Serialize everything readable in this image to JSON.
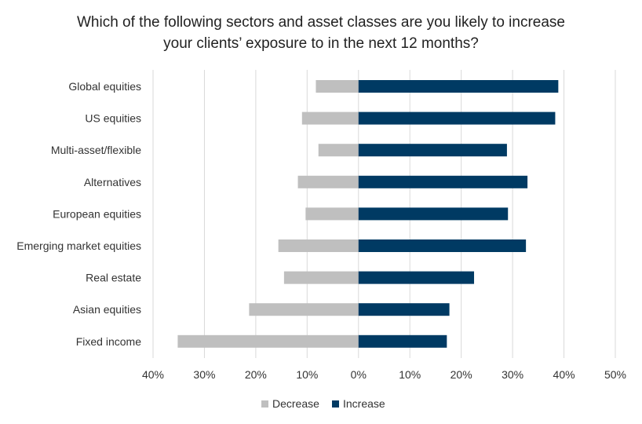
{
  "chart_data": {
    "type": "bar",
    "orientation": "horizontal",
    "stacked": "diverging",
    "title": [
      "Which of the following sectors and asset classes are you likely to increase",
      "your clients’ exposure to in the next 12 months?"
    ],
    "categories": [
      "Global equities",
      "US equities",
      "Multi-asset/flexible",
      "Alternatives",
      "European equities",
      "Emerging market equities",
      "Real estate",
      "Asian equities",
      "Fixed income"
    ],
    "series": [
      {
        "name": "Decrease",
        "color": "#bfbfbf",
        "values": [
          -8.3,
          -11,
          -7.8,
          -11.8,
          -10.3,
          -15.6,
          -14.5,
          -21.3,
          -35.2
        ]
      },
      {
        "name": "Increase",
        "color": "#003a63",
        "values": [
          38.9,
          38.3,
          28.9,
          32.9,
          29.1,
          32.6,
          22.5,
          17.7,
          17.2
        ]
      }
    ],
    "xlim": [
      -40,
      50
    ],
    "xticks": [
      -40,
      -30,
      -20,
      -10,
      0,
      10,
      20,
      30,
      40,
      50
    ],
    "xtick_labels": [
      "40%",
      "30%",
      "20%",
      "10%",
      "0%",
      "10%",
      "20%",
      "30%",
      "40%",
      "50%"
    ],
    "grid": "vertical",
    "grid_color": "#d9d9d9",
    "legend": "bottom-center"
  }
}
